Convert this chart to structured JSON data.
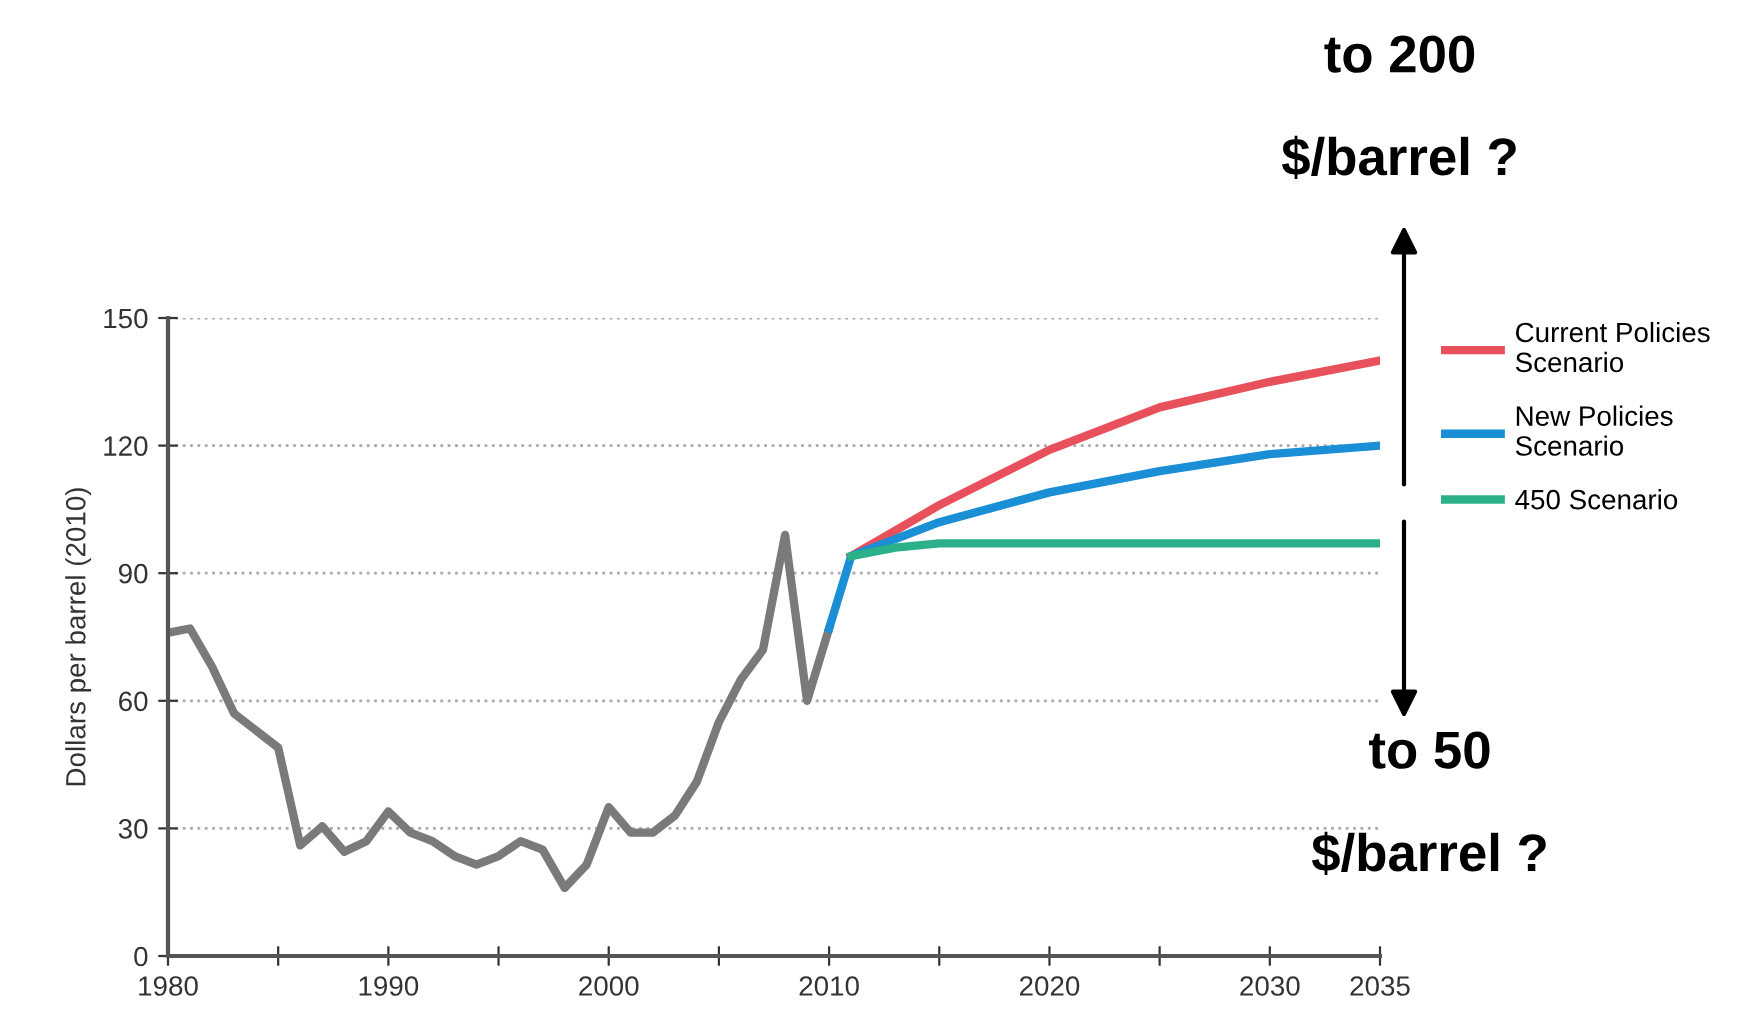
{
  "chart_data": {
    "type": "line",
    "ylabel": "Dollars per barrel (2010)",
    "xlim": [
      1980,
      2035
    ],
    "ylim": [
      0,
      150
    ],
    "xticks": [
      1980,
      {
        "value": 1985,
        "label": null
      },
      1990,
      {
        "value": 1995,
        "label": null
      },
      2000,
      {
        "value": 2005,
        "label": null
      },
      2010,
      {
        "value": 2015,
        "label": null
      },
      2020,
      {
        "value": 2025,
        "label": null
      },
      2030,
      2035
    ],
    "yticks": [
      0,
      30,
      60,
      90,
      120,
      150
    ],
    "grid": "y",
    "legend": "right",
    "line_style": "solid",
    "marker": "none",
    "annotations": [
      "to 200\n$/barrel ?",
      "to 50\n$/barrel ?"
    ],
    "series": [
      {
        "color": "#7a7a7a",
        "x": [
          1980,
          1981,
          1982,
          1983,
          1984,
          1985,
          1986,
          1987,
          1988,
          1989,
          1990,
          1991,
          1992,
          1993,
          1994,
          1995,
          1996,
          1997,
          1998,
          1999,
          2000,
          2001,
          2002,
          2003,
          2004,
          2005,
          2006,
          2007,
          2008,
          2009,
          2010
        ],
        "values": [
          76,
          77,
          68,
          57,
          53,
          49,
          26,
          30.5,
          24.5,
          27,
          34,
          29,
          27,
          23.5,
          21.5,
          23.5,
          27,
          25,
          16,
          21.5,
          35,
          29,
          29,
          33,
          41,
          55,
          65,
          72,
          99,
          60,
          77
        ]
      },
      {
        "name": "Current Policies Scenario",
        "color": "#e8505b",
        "x": [
          2011,
          2015,
          2020,
          2025,
          2030,
          2035
        ],
        "values": [
          94,
          106,
          119,
          129,
          135,
          140
        ]
      },
      {
        "name": "New Policies Scenario",
        "color": "#1a8fd6",
        "x": [
          2010,
          2011,
          2015,
          2020,
          2025,
          2030,
          2035
        ],
        "values": [
          77,
          94,
          102,
          109,
          114,
          118,
          120
        ]
      },
      {
        "name": "450 Scenario",
        "color": "#2bb08a",
        "x": [
          2011,
          2013,
          2015,
          2020,
          2025,
          2030,
          2035
        ],
        "values": [
          94,
          96,
          97,
          97,
          97,
          97,
          97
        ]
      }
    ]
  }
}
